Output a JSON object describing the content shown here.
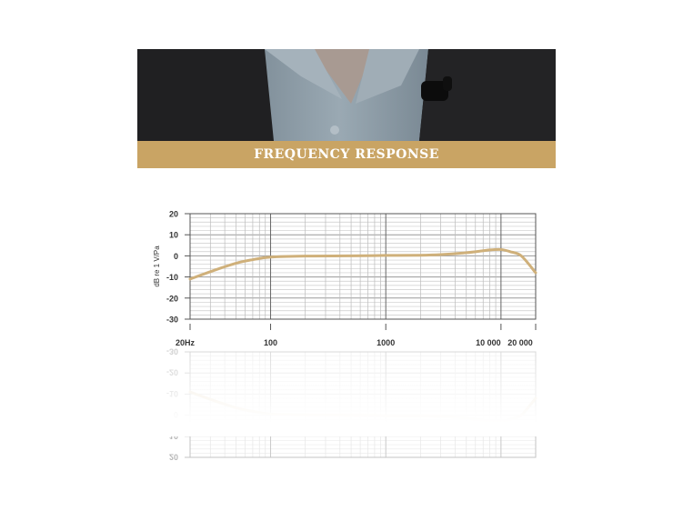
{
  "banner": {
    "title": "FREQUENCY RESPONSE"
  },
  "colors": {
    "banner": "#c9a464",
    "curve": "#cfb07a",
    "grid": "#bbbbbb",
    "jacket": "#1c1c1e",
    "shirt": "#8f9ea8"
  },
  "chart_data": {
    "type": "line",
    "title": "",
    "ylabel": "dB re 1 V/Pa",
    "xlabel": "",
    "xscale": "log",
    "xlim": [
      20,
      20000
    ],
    "ylim": [
      -30,
      20
    ],
    "grid": true,
    "yticks": [
      20,
      10,
      0,
      -10,
      -20,
      -30
    ],
    "xtick_labels": [
      {
        "value": 20,
        "label": "20Hz"
      },
      {
        "value": 100,
        "label": "100"
      },
      {
        "value": 1000,
        "label": "1000"
      },
      {
        "value": 10000,
        "label": "10 000"
      },
      {
        "value": 20000,
        "label": "20 000"
      }
    ],
    "series": [
      {
        "x": [
          20,
          30,
          50,
          70,
          100,
          200,
          500,
          1000,
          2000,
          3000,
          5000,
          8000,
          10000,
          12000,
          15000,
          20000
        ],
        "y": [
          -11,
          -7.5,
          -3.5,
          -1.8,
          -0.6,
          -0.1,
          0,
          0.2,
          0.3,
          0.6,
          1.5,
          2.8,
          3,
          2,
          0,
          -8
        ]
      }
    ]
  }
}
